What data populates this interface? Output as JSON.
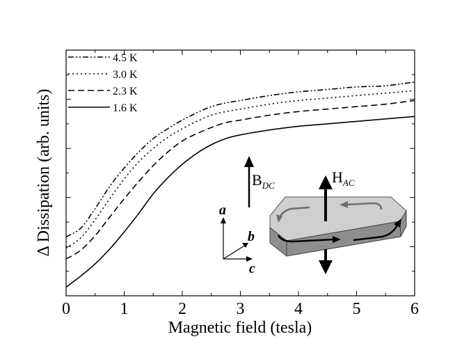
{
  "chart_data": {
    "type": "line",
    "xlabel": "Magnetic field (tesla)",
    "ylabel": "Δ Dissipation (arb. units)",
    "xlim": [
      0,
      6
    ],
    "ylim": [
      0,
      10
    ],
    "xticks": [
      0,
      1,
      2,
      3,
      4,
      5,
      6
    ],
    "x_tick_labels": [
      "0",
      "1",
      "2",
      "3",
      "4",
      "5",
      "6"
    ],
    "y_tick_labels_shown": false,
    "grid": false,
    "legend_position": "top-left",
    "series": [
      {
        "name": "4.5 K",
        "style": "dash-dot-dot",
        "x": [
          0,
          0.25,
          0.5,
          0.75,
          1,
          1.25,
          1.5,
          1.75,
          2,
          2.25,
          2.5,
          2.75,
          3,
          3.5,
          4,
          4.5,
          5,
          5.5,
          6
        ],
        "y": [
          2.4,
          2.75,
          3.55,
          4.45,
          5.2,
          5.85,
          6.4,
          6.8,
          7.15,
          7.45,
          7.7,
          7.85,
          7.95,
          8.15,
          8.3,
          8.4,
          8.5,
          8.55,
          8.7
        ]
      },
      {
        "name": "3.0 K",
        "style": "dotted",
        "x": [
          0,
          0.25,
          0.5,
          0.75,
          1,
          1.25,
          1.5,
          1.75,
          2,
          2.25,
          2.5,
          2.75,
          3,
          3.5,
          4,
          4.5,
          5,
          5.5,
          6
        ],
        "y": [
          1.95,
          2.35,
          3.1,
          3.95,
          4.75,
          5.45,
          6.0,
          6.45,
          6.8,
          7.1,
          7.35,
          7.5,
          7.6,
          7.8,
          7.95,
          8.05,
          8.15,
          8.25,
          8.35
        ]
      },
      {
        "name": "2.3 K",
        "style": "dashed",
        "x": [
          0,
          0.25,
          0.5,
          0.75,
          1,
          1.25,
          1.5,
          1.75,
          2,
          2.25,
          2.5,
          2.75,
          3,
          3.5,
          4,
          4.5,
          5,
          5.5,
          6
        ],
        "y": [
          1.5,
          1.85,
          2.45,
          3.2,
          3.95,
          4.65,
          5.3,
          5.85,
          6.3,
          6.6,
          6.85,
          7.05,
          7.15,
          7.35,
          7.5,
          7.6,
          7.7,
          7.8,
          7.95
        ]
      },
      {
        "name": "1.6 K",
        "style": "solid",
        "x": [
          0,
          0.25,
          0.5,
          0.75,
          1,
          1.25,
          1.5,
          1.75,
          2,
          2.25,
          2.5,
          2.75,
          3,
          3.5,
          4,
          4.5,
          5,
          5.5,
          6
        ],
        "y": [
          0.35,
          0.8,
          1.3,
          1.9,
          2.6,
          3.35,
          4.15,
          4.8,
          5.35,
          5.8,
          6.15,
          6.4,
          6.55,
          6.75,
          6.9,
          7.0,
          7.1,
          7.2,
          7.3
        ]
      }
    ],
    "inset": {
      "b_dc_label": "B",
      "b_dc_sub": "DC",
      "h_ac_label": "H",
      "h_ac_sub": "AC",
      "axis_a": "a",
      "axis_b": "b",
      "axis_c": "c"
    }
  }
}
